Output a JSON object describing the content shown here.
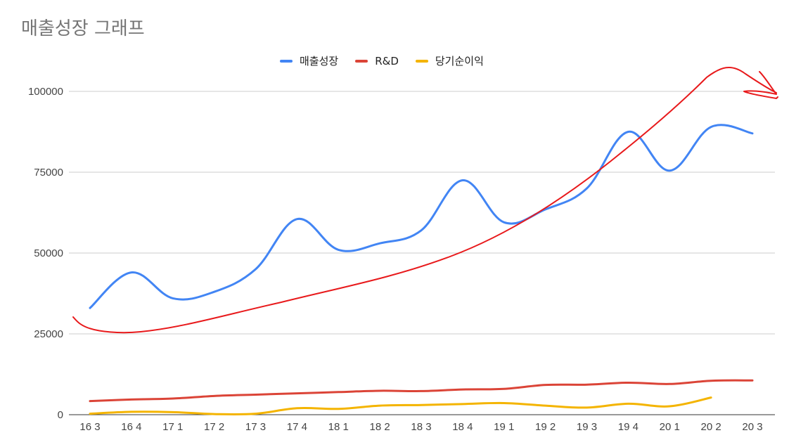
{
  "chart_data": {
    "type": "line",
    "title": "매출성장 그래프",
    "categories": [
      "16 3",
      "16 4",
      "17 1",
      "17 2",
      "17 3",
      "17 4",
      "18 1",
      "18 2",
      "18 3",
      "18 4",
      "19 1",
      "19 2",
      "19 3",
      "19 4",
      "20 1",
      "20 2",
      "20 3"
    ],
    "ylim": [
      0,
      100000
    ],
    "yticks": [
      0,
      25000,
      50000,
      75000,
      100000
    ],
    "grid": true,
    "legend_position": "top",
    "series": [
      {
        "name": "매출성장",
        "color": "#4285f4",
        "values": [
          33000,
          44000,
          36000,
          38000,
          45000,
          60500,
          51000,
          53000,
          57000,
          72500,
          59500,
          63500,
          70000,
          87500,
          75500,
          89000,
          87000
        ]
      },
      {
        "name": "R&D",
        "color": "#db4437",
        "values": [
          4200,
          4700,
          5000,
          5800,
          6200,
          6600,
          7000,
          7400,
          7300,
          7800,
          8000,
          9200,
          9300,
          9900,
          9500,
          10500,
          10600
        ]
      },
      {
        "name": "당기순이익",
        "color": "#f4b400",
        "values": [
          300,
          900,
          800,
          200,
          300,
          2000,
          1800,
          2800,
          3000,
          3300,
          3600,
          2800,
          2200,
          3400,
          2600,
          5300,
          null
        ]
      }
    ]
  }
}
